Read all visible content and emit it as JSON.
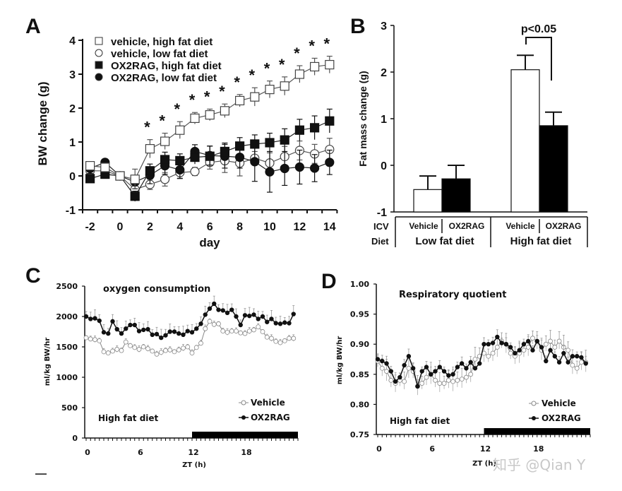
{
  "chart_data": [
    {
      "panel": "A",
      "type": "line",
      "title": "",
      "xlabel": "day",
      "ylabel": "BW change (g)",
      "xlim": [
        -2.5,
        14.5
      ],
      "ylim": [
        -1,
        4
      ],
      "xticks": [
        -2,
        0,
        2,
        4,
        6,
        8,
        10,
        12,
        14
      ],
      "xtick_labels": [
        "-2",
        "0",
        "2",
        "4",
        "6",
        "8",
        "10",
        "12",
        "14"
      ],
      "yticks": [
        -1,
        0,
        1,
        2,
        3,
        4
      ],
      "ytick_labels": [
        "-1",
        "0",
        "1",
        "2",
        "3",
        "4"
      ],
      "legend_position": "top-left",
      "x": [
        -2,
        -1,
        0,
        1,
        2,
        3,
        4,
        5,
        6,
        7,
        8,
        9,
        10,
        11,
        12,
        13,
        14
      ],
      "series": [
        {
          "name": "vehicle, high fat diet",
          "marker": "open-square",
          "values": [
            0.3,
            0.25,
            0.0,
            -0.1,
            0.8,
            1.02,
            1.35,
            1.7,
            1.8,
            1.92,
            2.22,
            2.33,
            2.55,
            2.65,
            3.0,
            3.22,
            3.28
          ],
          "errors": [
            0.12,
            0.1,
            0.0,
            0.3,
            0.27,
            0.24,
            0.25,
            0.17,
            0.17,
            0.2,
            0.18,
            0.27,
            0.25,
            0.27,
            0.25,
            0.25,
            0.25
          ]
        },
        {
          "name": "vehicle, low fat diet",
          "marker": "open-circle",
          "values": [
            0.15,
            0.15,
            0.0,
            -0.4,
            -0.25,
            -0.1,
            0.1,
            0.13,
            0.4,
            0.45,
            0.38,
            0.52,
            0.38,
            0.57,
            0.75,
            0.65,
            0.78
          ],
          "errors": [
            0.1,
            0.1,
            0.0,
            0.15,
            0.15,
            0.2,
            0.18,
            0.12,
            0.2,
            0.35,
            0.38,
            0.2,
            0.3,
            0.3,
            0.28,
            0.28,
            0.33
          ]
        },
        {
          "name": "OX2RAG, high fat diet",
          "marker": "filled-square",
          "values": [
            -0.08,
            0.05,
            0.0,
            -0.6,
            0.15,
            0.48,
            0.45,
            0.55,
            0.58,
            0.72,
            0.88,
            0.94,
            0.98,
            1.06,
            1.35,
            1.42,
            1.62
          ],
          "errors": [
            0.1,
            0.1,
            0.0,
            0.15,
            0.2,
            0.22,
            0.2,
            0.2,
            0.3,
            0.25,
            0.25,
            0.27,
            0.28,
            0.33,
            0.32,
            0.35,
            0.35
          ]
        },
        {
          "name": "OX2RAG, low fat diet",
          "marker": "filled-circle",
          "values": [
            0.22,
            0.4,
            0.0,
            -0.18,
            0.02,
            0.3,
            0.18,
            0.72,
            0.6,
            0.58,
            0.55,
            0.42,
            0.12,
            0.22,
            0.26,
            0.23,
            0.4
          ],
          "errors": [
            0.15,
            0.1,
            0.0,
            0.2,
            0.25,
            0.25,
            0.25,
            0.2,
            0.28,
            0.35,
            0.32,
            0.58,
            0.6,
            0.5,
            0.5,
            0.4,
            0.36
          ]
        }
      ],
      "annotations": {
        "significance_marker": "*",
        "significance_days": [
          2,
          3,
          4,
          5,
          6,
          7,
          8,
          9,
          10,
          11,
          12,
          13,
          14
        ]
      }
    },
    {
      "panel": "B",
      "type": "bar",
      "title": "",
      "xlabel": "",
      "ylabel": "Fat mass change (g)",
      "ylim": [
        -1,
        3
      ],
      "yticks": [
        -1,
        0,
        1,
        2,
        3
      ],
      "ytick_labels": [
        "-1",
        "0",
        "1",
        "2",
        "3"
      ],
      "row_labels": {
        "icv": "ICV",
        "diet": "Diet"
      },
      "categories": [
        "Vehicle",
        "OX2RAG",
        "Vehicle",
        "OX2RAG"
      ],
      "groups": [
        "Low fat diet",
        "High fat diet"
      ],
      "series": [
        {
          "name": "Vehicle",
          "fill": "white",
          "values": [
            -0.52,
            2.05
          ],
          "errors": [
            0.29,
            0.31
          ]
        },
        {
          "name": "OX2RAG",
          "fill": "black",
          "values": [
            -0.29,
            0.85
          ],
          "errors": [
            0.29,
            0.29
          ]
        }
      ],
      "annotations": {
        "comparison": "p<0.05",
        "between": "High fat diet Vehicle vs OX2RAG"
      }
    },
    {
      "panel": "C",
      "type": "line",
      "title": "oxygen consumption",
      "xlabel": "ZT (h)",
      "ylabel": "ml/kg BW/hr",
      "xlim": [
        0,
        24
      ],
      "ylim": [
        0,
        2500
      ],
      "xticks": [
        0,
        6,
        12,
        18
      ],
      "xtick_labels": [
        "0",
        "6",
        "12",
        "18"
      ],
      "yticks": [
        0,
        500,
        1000,
        1500,
        2000,
        2500
      ],
      "ytick_labels": [
        "0",
        "500",
        "1000",
        "1500",
        "2000",
        "2500"
      ],
      "annotation": "High fat diet",
      "dark_phase": [
        12,
        24
      ],
      "legend_position": "bottom-right",
      "x_step_hours": 0.5,
      "series": [
        {
          "name": "Vehicle",
          "marker": "open-circle",
          "values": [
            1650,
            1630,
            1620,
            1600,
            1420,
            1400,
            1430,
            1460,
            1440,
            1580,
            1520,
            1490,
            1460,
            1500,
            1470,
            1430,
            1380,
            1410,
            1440,
            1450,
            1420,
            1450,
            1480,
            1500,
            1400,
            1490,
            1560,
            1800,
            1920,
            1870,
            1880,
            1760,
            1740,
            1760,
            1760,
            1730,
            1720,
            1760,
            1780,
            1830,
            1750,
            1660,
            1640,
            1590,
            1570,
            1600,
            1640,
            1640
          ],
          "error": 60
        },
        {
          "name": "OX2RAG",
          "marker": "filled-circle",
          "values": [
            2000,
            1960,
            1970,
            1930,
            1740,
            1720,
            1920,
            1790,
            1720,
            1800,
            1860,
            1860,
            1760,
            1780,
            1790,
            1700,
            1710,
            1650,
            1690,
            1750,
            1750,
            1720,
            1700,
            1760,
            1740,
            1800,
            1880,
            2030,
            2130,
            2210,
            2110,
            2100,
            2060,
            2110,
            2000,
            1860,
            2020,
            2010,
            2030,
            1960,
            2000,
            1910,
            1960,
            1890,
            1880,
            1900,
            1890,
            2040
          ],
          "error": 140
        }
      ]
    },
    {
      "panel": "D",
      "type": "line",
      "title": "Respiratory quotient",
      "xlabel": "ZT (h)",
      "ylabel": "ml/kg BW/hr",
      "xlim": [
        0,
        24
      ],
      "ylim": [
        0.75,
        1.0
      ],
      "xticks": [
        0,
        6,
        12,
        18
      ],
      "xtick_labels": [
        "0",
        "6",
        "12",
        "18"
      ],
      "yticks": [
        0.75,
        0.8,
        0.85,
        0.9,
        0.95,
        1.0
      ],
      "ytick_labels": [
        "0.75",
        "0.80",
        "0.85",
        "0.90",
        "0.95",
        "1.00"
      ],
      "annotation": "High fat diet",
      "dark_phase": [
        12,
        24
      ],
      "legend_position": "bottom-right",
      "x_step_hours": 0.5,
      "series": [
        {
          "name": "Vehicle",
          "marker": "open-circle",
          "values": [
            0.872,
            0.86,
            0.855,
            0.84,
            0.835,
            0.84,
            0.838,
            0.86,
            0.855,
            0.83,
            0.835,
            0.845,
            0.85,
            0.84,
            0.835,
            0.835,
            0.84,
            0.838,
            0.84,
            0.842,
            0.845,
            0.85,
            0.875,
            0.88,
            0.885,
            0.88,
            0.885,
            0.895,
            0.905,
            0.9,
            0.885,
            0.88,
            0.885,
            0.89,
            0.895,
            0.91,
            0.905,
            0.89,
            0.9,
            0.905,
            0.895,
            0.905,
            0.895,
            0.89,
            0.865,
            0.86,
            0.87,
            0.87
          ],
          "error": 0.02
        },
        {
          "name": "OX2RAG",
          "marker": "filled-circle",
          "values": [
            0.875,
            0.872,
            0.868,
            0.855,
            0.838,
            0.845,
            0.865,
            0.88,
            0.86,
            0.83,
            0.855,
            0.862,
            0.85,
            0.855,
            0.862,
            0.855,
            0.848,
            0.85,
            0.862,
            0.868,
            0.86,
            0.87,
            0.86,
            0.868,
            0.9,
            0.9,
            0.902,
            0.912,
            0.902,
            0.9,
            0.895,
            0.885,
            0.89,
            0.9,
            0.905,
            0.89,
            0.905,
            0.895,
            0.872,
            0.89,
            0.88,
            0.87,
            0.885,
            0.87,
            0.88,
            0.88,
            0.878,
            0.868
          ],
          "error": 0.012
        }
      ]
    }
  ],
  "labels": {
    "panel_a": "A",
    "panel_b": "B",
    "panel_c": "C",
    "panel_d": "D",
    "a_xlabel": "day",
    "a_ylabel": "BW change (g)",
    "b_ylabel": "Fat mass change (g)",
    "b_pvalue": "p<0.05",
    "b_icv": "ICV",
    "b_diet": "Diet",
    "b_vehicle_1": "Vehicle",
    "b_ox2rag_1": "OX2RAG",
    "b_vehicle_2": "Vehicle",
    "b_ox2rag_2": "OX2RAG",
    "b_low_fat": "Low fat diet",
    "b_high_fat": "High fat diet",
    "c_title": "oxygen consumption",
    "c_ylabel": "ml/kg BW/hr",
    "c_xlabel": "ZT (h)",
    "c_diet": "High fat diet",
    "c_legend_vehicle": "Vehicle",
    "c_legend_ox2rag": "OX2RAG",
    "d_title": "Respiratory quotient",
    "d_ylabel": "ml/kg BW/hr",
    "d_xlabel": "ZT (h)",
    "d_diet": "High fat diet",
    "d_legend_vehicle": "Vehicle",
    "d_legend_ox2rag": "OX2RAG",
    "watermark": "知乎 @Qian Y"
  }
}
